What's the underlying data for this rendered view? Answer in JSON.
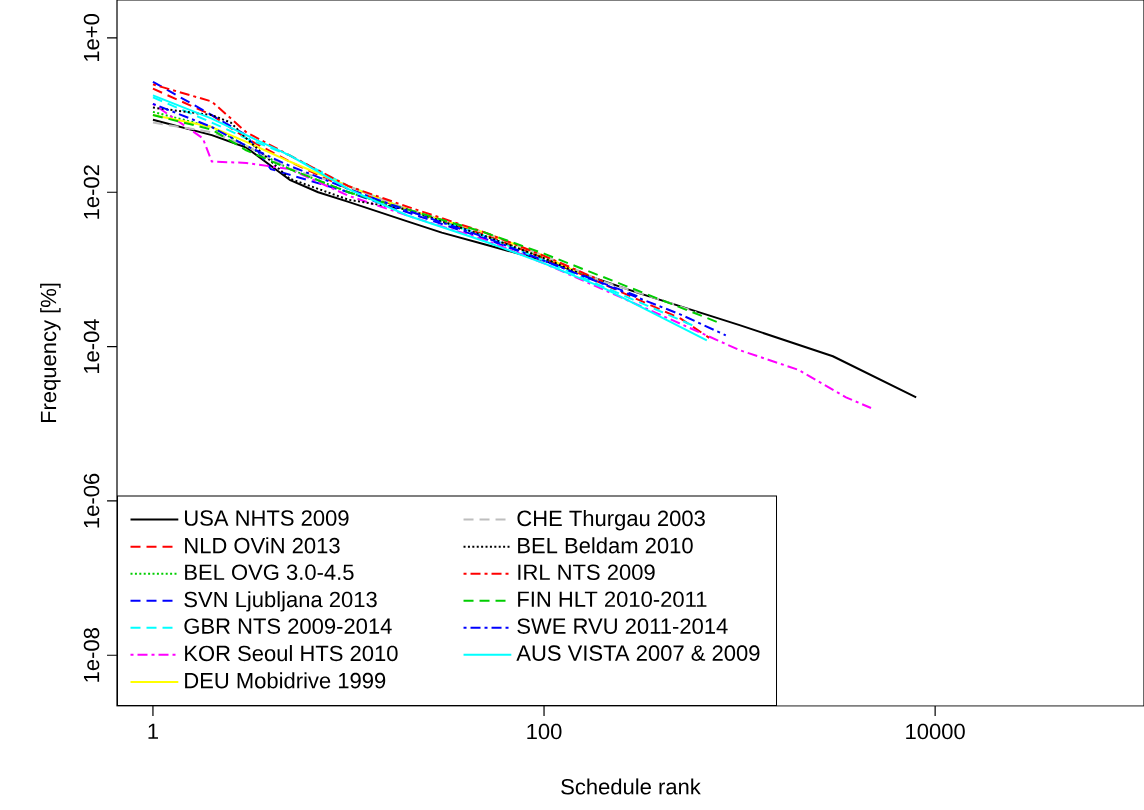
{
  "chart_data": {
    "type": "line",
    "xlabel": "Schedule rank",
    "ylabel": "Frequency [%]",
    "log": "xy",
    "grid": false,
    "legend": "bottom left",
    "marker": "none",
    "xlim": [
      0.655,
      117000
    ],
    "ylim": [
      2.2e-09,
      3.1
    ],
    "xticks": [
      1,
      100,
      10000
    ],
    "yticks": [
      {
        "value": 1,
        "label": "1e+0"
      },
      {
        "value": 0.01,
        "label": "1e-02"
      },
      {
        "value": 0.0001,
        "label": "1e-04"
      },
      {
        "value": 1e-06,
        "label": "1e-06"
      },
      {
        "value": 1e-08,
        "label": "1e-08"
      }
    ],
    "series": [
      {
        "name": "USA NHTS 2009",
        "color": "#000000",
        "line_style": "solid",
        "x": [
          1,
          2,
          3,
          5,
          7,
          10,
          20,
          30,
          50,
          100,
          300,
          1000,
          3000,
          8000
        ],
        "values": [
          0.087,
          0.055,
          0.038,
          0.0145,
          0.01,
          0.0075,
          0.0042,
          0.003,
          0.0021,
          0.0013,
          0.0005,
          0.00019,
          7.5e-05,
          2.2e-05
        ]
      },
      {
        "name": "NLD OViN 2013",
        "color": "#ff0000",
        "line_style": "dashed",
        "x": [
          1,
          2,
          3,
          5,
          10,
          20,
          50,
          100,
          200,
          500,
          700
        ],
        "values": [
          0.22,
          0.1,
          0.05,
          0.025,
          0.011,
          0.006,
          0.0028,
          0.0014,
          0.00065,
          0.00023,
          0.00013
        ]
      },
      {
        "name": "BEL OVG 3.0-4.5",
        "color": "#00cd00",
        "line_style": "dotted",
        "x": [
          1,
          2,
          3,
          5,
          10,
          20,
          50,
          100,
          200
        ],
        "values": [
          0.11,
          0.07,
          0.04,
          0.02,
          0.01,
          0.0058,
          0.0027,
          0.0014,
          0.0007
        ]
      },
      {
        "name": "SVN Ljubljana 2013",
        "color": "#0000ff",
        "line_style": "dashed",
        "x": [
          1,
          2,
          3,
          4,
          10,
          20,
          50,
          100,
          300
        ],
        "values": [
          0.27,
          0.1,
          0.055,
          0.02,
          0.01,
          0.0055,
          0.0025,
          0.0013,
          0.00045
        ]
      },
      {
        "name": "GBR NTS 2009-2014",
        "color": "#00ffff",
        "line_style": "dashed",
        "x": [
          1,
          2,
          3,
          5,
          10,
          20,
          50,
          100,
          200,
          600
        ],
        "values": [
          0.17,
          0.08,
          0.05,
          0.03,
          0.012,
          0.006,
          0.0027,
          0.0013,
          0.0006,
          0.00018
        ]
      },
      {
        "name": "KOR Seoul HTS 2010",
        "color": "#ff00ff",
        "line_style": "dashdot",
        "x": [
          1,
          1.8,
          2,
          3,
          5,
          10,
          20,
          50,
          100,
          300,
          1000,
          2000,
          3500,
          4700
        ],
        "values": [
          0.14,
          0.05,
          0.025,
          0.024,
          0.02,
          0.009,
          0.005,
          0.0024,
          0.0012,
          0.00035,
          9e-05,
          5e-05,
          2.2e-05,
          1.6e-05
        ]
      },
      {
        "name": "DEU Mobidrive 1999",
        "color": "#ffff00",
        "line_style": "solid",
        "x": [
          1,
          2,
          3,
          5,
          10,
          20,
          50,
          100,
          150
        ],
        "values": [
          0.1,
          0.07,
          0.045,
          0.025,
          0.012,
          0.006,
          0.003,
          0.0015,
          0.0009
        ]
      },
      {
        "name": "CHE Thurgau 2003",
        "color": "#bebebe",
        "line_style": "dashed",
        "x": [
          1,
          2,
          3,
          5,
          10,
          20,
          50,
          100,
          200,
          400,
          600
        ],
        "values": [
          0.08,
          0.06,
          0.04,
          0.02,
          0.012,
          0.006,
          0.003,
          0.0015,
          0.0007,
          0.0004,
          0.00028
        ]
      },
      {
        "name": "BEL Beldam 2010",
        "color": "#000000",
        "line_style": "dotted",
        "x": [
          1,
          2,
          2.5,
          3,
          5,
          10,
          20,
          50,
          100,
          150
        ],
        "values": [
          0.125,
          0.1,
          0.08,
          0.05,
          0.015,
          0.008,
          0.006,
          0.0027,
          0.0014,
          0.0009
        ]
      },
      {
        "name": "IRL NTS 2009",
        "color": "#ff0000",
        "line_style": "dashdot",
        "x": [
          1,
          2,
          3,
          5,
          10,
          20,
          50,
          100,
          200
        ],
        "values": [
          0.25,
          0.15,
          0.06,
          0.03,
          0.012,
          0.0065,
          0.003,
          0.0015,
          0.0007
        ]
      },
      {
        "name": "FIN HLT 2010-2011",
        "color": "#00cd00",
        "line_style": "dashed",
        "x": [
          1,
          2,
          3,
          5,
          10,
          20,
          50,
          100,
          200,
          400,
          800
        ],
        "values": [
          0.1,
          0.065,
          0.035,
          0.02,
          0.01,
          0.006,
          0.003,
          0.0016,
          0.0008,
          0.0004,
          0.0002
        ]
      },
      {
        "name": "SWE RVU 2011-2014",
        "color": "#0000ff",
        "line_style": "dashdot",
        "x": [
          1,
          2,
          3,
          5,
          10,
          20,
          50,
          100,
          200,
          500,
          850
        ],
        "values": [
          0.14,
          0.07,
          0.04,
          0.022,
          0.011,
          0.0058,
          0.0026,
          0.0013,
          0.00065,
          0.00026,
          0.00014
        ]
      },
      {
        "name": "AUS VISTA 2007 & 2009",
        "color": "#00ffff",
        "line_style": "solid",
        "x": [
          1,
          2,
          3,
          5,
          10,
          20,
          50,
          100,
          200,
          680
        ],
        "values": [
          0.18,
          0.09,
          0.055,
          0.03,
          0.011,
          0.005,
          0.0023,
          0.0012,
          0.00058,
          0.00012
        ]
      }
    ]
  }
}
